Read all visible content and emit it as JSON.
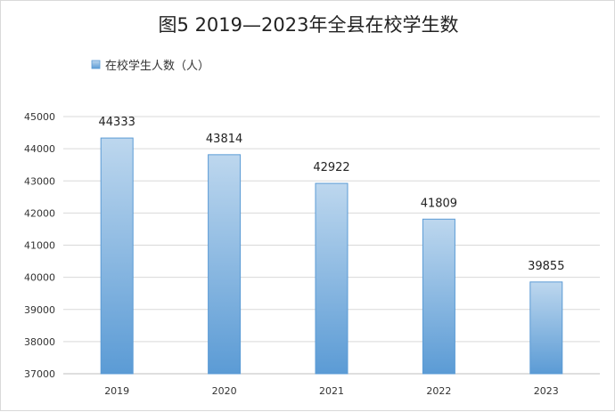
{
  "chart_data": {
    "type": "bar",
    "title": "图5  2019—2023年全县在校学生数",
    "categories": [
      "2019",
      "2020",
      "2021",
      "2022",
      "2023"
    ],
    "series": [
      {
        "name": "在校学生人数（人）",
        "values": [
          44333,
          43814,
          42922,
          41809,
          39855
        ]
      }
    ],
    "ylim": [
      37000,
      45000
    ],
    "yticks": [
      37000,
      38000,
      39000,
      40000,
      41000,
      42000,
      43000,
      44000,
      45000
    ],
    "grid": true,
    "legend": "top-left",
    "data_labels": true,
    "colors": {
      "bar_top": "#bdd7ee",
      "bar_bottom": "#5b9bd5",
      "grid": "#d9d9d9"
    }
  }
}
